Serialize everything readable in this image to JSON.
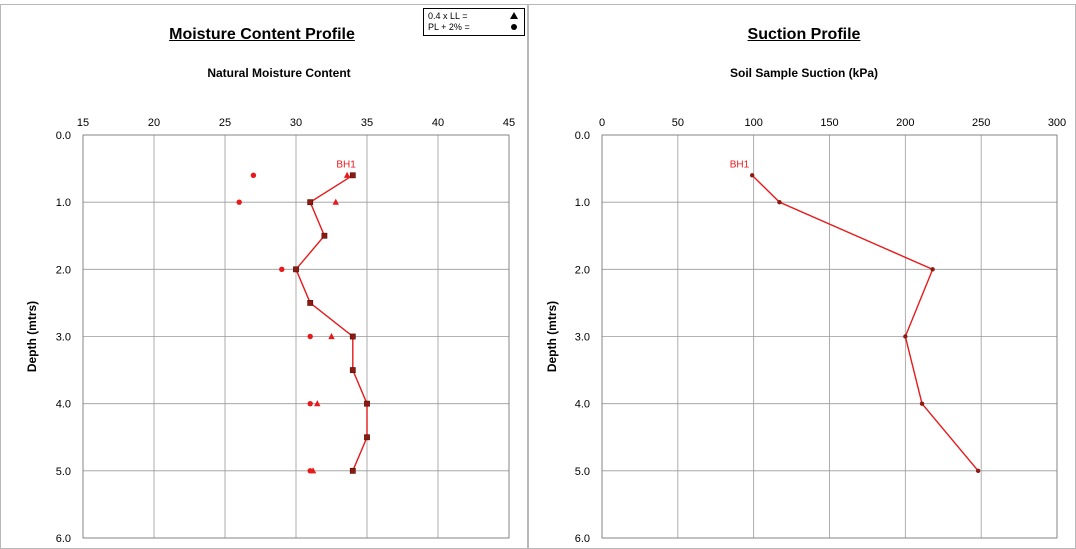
{
  "chart_data": [
    {
      "type": "line",
      "title": "Moisture Content Profile",
      "subtitle": "Natural Moisture Content",
      "ylabel": "Depth (mtrs)",
      "xlabel": "",
      "xlim": [
        15,
        45
      ],
      "ylim": [
        0,
        6
      ],
      "y_inverted": true,
      "x_axis_position": "top",
      "grid": true,
      "x_ticks": [
        "15",
        "20",
        "25",
        "30",
        "35",
        "40",
        "45"
      ],
      "y_ticks": [
        "0.0",
        "1.0",
        "2.0",
        "3.0",
        "4.0",
        "5.0",
        "6.0"
      ],
      "line_color": "#e8191b",
      "marker_color": "#8b1a10",
      "annotation": {
        "text": "BH1",
        "x": 34,
        "y": 0.6
      },
      "series": [
        {
          "label": "BH1",
          "kind": "line",
          "points": [
            [
              34,
              0.6
            ],
            [
              31,
              1.0
            ],
            [
              32,
              1.5
            ],
            [
              30,
              2.0
            ],
            [
              31,
              2.5
            ],
            [
              34,
              3.0
            ],
            [
              34,
              3.5
            ],
            [
              35,
              4.0
            ],
            [
              35,
              4.5
            ],
            [
              34,
              5.0
            ]
          ]
        },
        {
          "kind": "triangles",
          "points": [
            [
              33.6,
              0.6
            ],
            [
              32.8,
              1.0
            ],
            [
              32.5,
              3.0
            ],
            [
              31.5,
              4.0
            ],
            [
              31.2,
              5.0
            ]
          ]
        },
        {
          "kind": "circles",
          "points": [
            [
              27,
              0.6
            ],
            [
              26,
              1.0
            ],
            [
              29,
              2.0
            ],
            [
              31,
              3.0
            ],
            [
              31,
              4.0
            ],
            [
              31,
              5.0
            ]
          ]
        }
      ],
      "legend": {
        "position": "top-right",
        "entries": [
          {
            "label": "0.4 x LL   =",
            "symbol": "triangle"
          },
          {
            "label": "PL + 2%  =",
            "symbol": "circle"
          }
        ]
      }
    },
    {
      "type": "line",
      "title": "Suction Profile",
      "subtitle": "Soil Sample Suction (kPa)",
      "ylabel": "Depth (mtrs)",
      "xlabel": "",
      "xlim": [
        0,
        300
      ],
      "ylim": [
        0,
        6
      ],
      "y_inverted": true,
      "x_axis_position": "top",
      "grid": true,
      "x_ticks": [
        "0",
        "50",
        "100",
        "150",
        "200",
        "250",
        "300"
      ],
      "y_ticks": [
        "0.0",
        "1.0",
        "2.0",
        "3.0",
        "4.0",
        "5.0",
        "6.0"
      ],
      "line_color": "#e8191b",
      "marker_color": "#8b1a10",
      "annotation": {
        "text": "BH1",
        "x": 99,
        "y": 0.6
      },
      "series": [
        {
          "label": "BH1",
          "kind": "line",
          "points": [
            [
              99,
              0.6
            ],
            [
              117,
              1.0
            ],
            [
              218,
              2.0
            ],
            [
              200,
              3.0
            ],
            [
              211,
              4.0
            ],
            [
              248,
              5.0
            ]
          ]
        }
      ]
    }
  ]
}
